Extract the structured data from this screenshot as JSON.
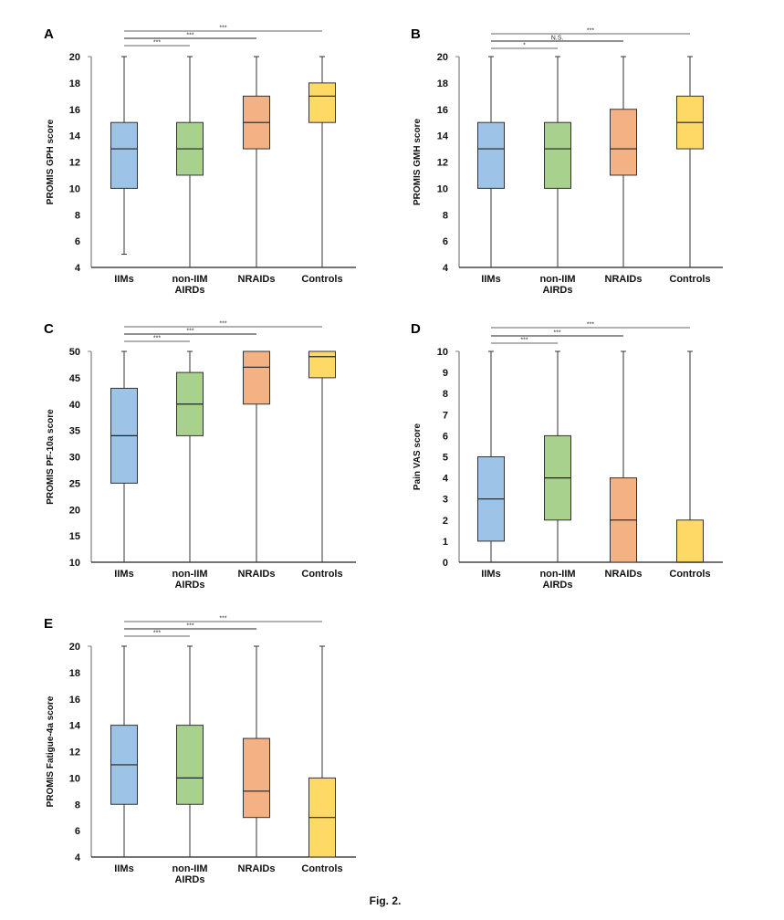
{
  "figure_caption": "Fig. 2.",
  "colors": {
    "IIMs": "#9dc3e6",
    "non-IIM AIRDs": "#a9d18e",
    "NRAIDs": "#f4b183",
    "Controls": "#ffd966",
    "axis": "#7f7f7f",
    "whisker": "#333333",
    "box_border": "#333333"
  },
  "chart_data": [
    {
      "panel": "A",
      "type": "box",
      "ylabel": "PROMIS GPH score",
      "categories": [
        "IIMs",
        "non-IIM\nAIRDs",
        "NRAIDs",
        "Controls"
      ],
      "ylim": [
        4,
        20
      ],
      "yticks": [
        4,
        6,
        8,
        10,
        12,
        14,
        16,
        18,
        20
      ],
      "boxes": [
        {
          "min": 5,
          "q1": 10,
          "median": 13,
          "q3": 15,
          "max": 20
        },
        {
          "min": 4,
          "q1": 11,
          "median": 13,
          "q3": 15,
          "max": 20
        },
        {
          "min": 4,
          "q1": 13,
          "median": 15,
          "q3": 17,
          "max": 20
        },
        {
          "min": 4,
          "q1": 15,
          "median": 17,
          "q3": 18,
          "max": 20
        }
      ],
      "significance": [
        {
          "from": 0,
          "to": 1,
          "label": "***"
        },
        {
          "from": 0,
          "to": 2,
          "label": "***"
        },
        {
          "from": 0,
          "to": 3,
          "label": "***"
        }
      ]
    },
    {
      "panel": "B",
      "type": "box",
      "ylabel": "PROMIS GMH score",
      "categories": [
        "IIMs",
        "non-IIM\nAIRDs",
        "NRAIDs",
        "Controls"
      ],
      "ylim": [
        4,
        20
      ],
      "yticks": [
        4,
        6,
        8,
        10,
        12,
        14,
        16,
        18,
        20
      ],
      "boxes": [
        {
          "min": 4,
          "q1": 10,
          "median": 13,
          "q3": 15,
          "max": 20
        },
        {
          "min": 4,
          "q1": 10,
          "median": 13,
          "q3": 15,
          "max": 20
        },
        {
          "min": 4,
          "q1": 11,
          "median": 13,
          "q3": 16,
          "max": 20
        },
        {
          "min": 4,
          "q1": 13,
          "median": 15,
          "q3": 17,
          "max": 20
        }
      ],
      "significance": [
        {
          "from": 0,
          "to": 1,
          "label": "*"
        },
        {
          "from": 0,
          "to": 2,
          "label": "N.S."
        },
        {
          "from": 0,
          "to": 3,
          "label": "***"
        }
      ]
    },
    {
      "panel": "C",
      "type": "box",
      "ylabel": "PROMIS PF-10a score",
      "categories": [
        "IIMs",
        "non-IIM\nAIRDs",
        "NRAIDs",
        "Controls"
      ],
      "ylim": [
        10,
        50
      ],
      "yticks": [
        10,
        15,
        20,
        25,
        30,
        35,
        40,
        45,
        50
      ],
      "boxes": [
        {
          "min": 10,
          "q1": 25,
          "median": 34,
          "q3": 43,
          "max": 50
        },
        {
          "min": 10,
          "q1": 34,
          "median": 40,
          "q3": 46,
          "max": 50
        },
        {
          "min": 10,
          "q1": 40,
          "median": 47,
          "q3": 50,
          "max": 50
        },
        {
          "min": 10,
          "q1": 45,
          "median": 49,
          "q3": 50,
          "max": 50
        }
      ],
      "significance": [
        {
          "from": 0,
          "to": 1,
          "label": "***"
        },
        {
          "from": 0,
          "to": 2,
          "label": "***"
        },
        {
          "from": 0,
          "to": 3,
          "label": "***"
        }
      ]
    },
    {
      "panel": "D",
      "type": "box",
      "ylabel": "Pain VAS score",
      "categories": [
        "IIMs",
        "non-IIM\nAIRDs",
        "NRAIDs",
        "Controls"
      ],
      "ylim": [
        0,
        10
      ],
      "yticks": [
        0,
        1,
        2,
        3,
        4,
        5,
        6,
        7,
        8,
        9,
        10
      ],
      "boxes": [
        {
          "min": 0,
          "q1": 1,
          "median": 3,
          "q3": 5,
          "max": 10
        },
        {
          "min": 0,
          "q1": 2,
          "median": 4,
          "q3": 6,
          "max": 10
        },
        {
          "min": 0,
          "q1": 0,
          "median": 2,
          "q3": 4,
          "max": 10
        },
        {
          "min": 0,
          "q1": 0,
          "median": 0,
          "q3": 2,
          "max": 10
        }
      ],
      "significance": [
        {
          "from": 0,
          "to": 1,
          "label": "***"
        },
        {
          "from": 0,
          "to": 2,
          "label": "***"
        },
        {
          "from": 0,
          "to": 3,
          "label": "***"
        }
      ]
    },
    {
      "panel": "E",
      "type": "box",
      "ylabel": "PROMIS Fatigue-4a score",
      "categories": [
        "IIMs",
        "non-IIM\nAIRDs",
        "NRAIDs",
        "Controls"
      ],
      "ylim": [
        4,
        20
      ],
      "yticks": [
        4,
        6,
        8,
        10,
        12,
        14,
        16,
        18,
        20
      ],
      "boxes": [
        {
          "min": 4,
          "q1": 8,
          "median": 11,
          "q3": 14,
          "max": 20
        },
        {
          "min": 4,
          "q1": 8,
          "median": 10,
          "q3": 14,
          "max": 20
        },
        {
          "min": 4,
          "q1": 7,
          "median": 9,
          "q3": 13,
          "max": 20
        },
        {
          "min": 4,
          "q1": 4,
          "median": 7,
          "q3": 10,
          "max": 20
        }
      ],
      "significance": [
        {
          "from": 0,
          "to": 1,
          "label": "***"
        },
        {
          "from": 0,
          "to": 2,
          "label": "***"
        },
        {
          "from": 0,
          "to": 3,
          "label": "***"
        }
      ]
    }
  ]
}
